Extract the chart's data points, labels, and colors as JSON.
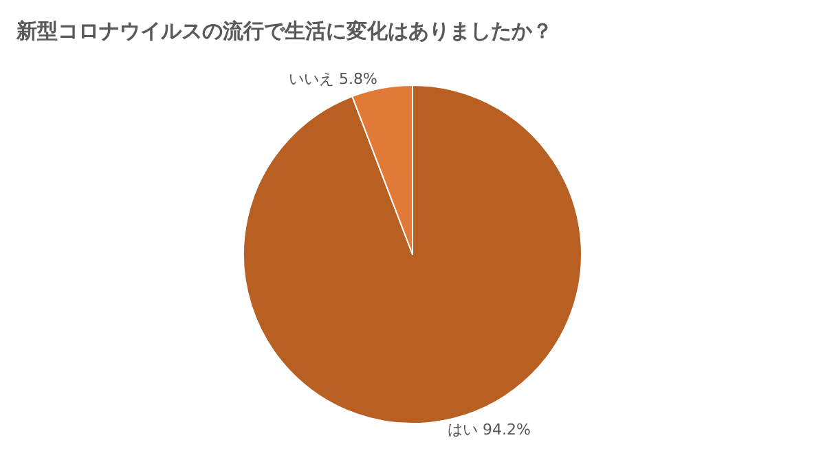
{
  "chart_data": {
    "type": "pie",
    "title": "新型コロナウイルスの流行で生活に変化はありましたか？",
    "categories": [
      "はい",
      "いいえ"
    ],
    "values": [
      94.2,
      5.8
    ],
    "colors": [
      "#b85f22",
      "#e07a36"
    ],
    "value_labels": [
      "94.2%",
      "5.8%"
    ],
    "legend": false
  }
}
